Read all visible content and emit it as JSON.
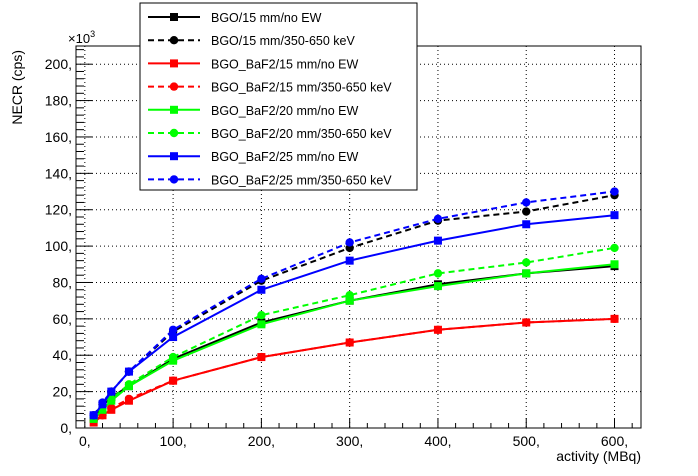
{
  "chart_data": {
    "type": "line",
    "title": "",
    "xlabel": "activity (MBq)",
    "ylabel": "NECR (cps)",
    "y_multiplier_label": "×10",
    "y_multiplier_exponent": "3",
    "xlim": [
      -10,
      630
    ],
    "ylim": [
      0,
      210
    ],
    "x_ticks": [
      0,
      100,
      200,
      300,
      400,
      500,
      600
    ],
    "x_tick_labels": [
      "0,",
      "100,",
      "200,",
      "300,",
      "400,",
      "500,",
      "600,"
    ],
    "y_ticks": [
      0,
      20,
      40,
      60,
      80,
      100,
      120,
      140,
      160,
      180,
      200
    ],
    "y_tick_labels": [
      "0,",
      "20,",
      "40,",
      "60,",
      "80,",
      "100,",
      "120,",
      "140,",
      "160,",
      "180,",
      "200,"
    ],
    "grid": true,
    "legend_position": "top-center",
    "x": [
      10,
      20,
      30,
      50,
      100,
      200,
      300,
      400,
      500,
      600
    ],
    "series": [
      {
        "name": "BGO/15 mm/no EW",
        "color": "#000000",
        "dashed": false,
        "marker": "square",
        "values": [
          6,
          12,
          17,
          23,
          38,
          58,
          70,
          79,
          85,
          89
        ]
      },
      {
        "name": "BGO/15 mm/350-650 keV",
        "color": "#000000",
        "dashed": true,
        "marker": "circle",
        "values": [
          7,
          13,
          20,
          31,
          53,
          81,
          99,
          114,
          119,
          128
        ]
      },
      {
        "name": "BGO_BaF2/15 mm/no EW",
        "color": "#ff0000",
        "dashed": false,
        "marker": "square",
        "values": [
          3,
          7,
          10,
          15,
          26,
          39,
          47,
          54,
          58,
          60
        ]
      },
      {
        "name": "BGO_BaF2/15 mm/350-650 keV",
        "color": "#ff0000",
        "dashed": true,
        "marker": "circle",
        "values": [
          4,
          7,
          11,
          16,
          26,
          39,
          47,
          54,
          58,
          60
        ]
      },
      {
        "name": "BGO_BaF2/20 mm/no EW",
        "color": "#00ff00",
        "dashed": false,
        "marker": "square",
        "values": [
          5,
          10,
          15,
          23,
          37,
          57,
          70,
          78,
          85,
          90
        ]
      },
      {
        "name": "BGO_BaF2/20 mm/350-650 keV",
        "color": "#00ff00",
        "dashed": true,
        "marker": "circle",
        "values": [
          6,
          11,
          16,
          24,
          39,
          62,
          73,
          85,
          91,
          99
        ]
      },
      {
        "name": "BGO_BaF2/25 mm/no EW",
        "color": "#0000ff",
        "dashed": false,
        "marker": "square",
        "values": [
          7,
          13,
          20,
          31,
          50,
          76,
          92,
          103,
          112,
          117
        ]
      },
      {
        "name": "BGO_BaF2/25 mm/350-650 keV",
        "color": "#0000ff",
        "dashed": true,
        "marker": "circle",
        "values": [
          7,
          14,
          20,
          31,
          54,
          82,
          102,
          115,
          124,
          130
        ]
      }
    ]
  }
}
